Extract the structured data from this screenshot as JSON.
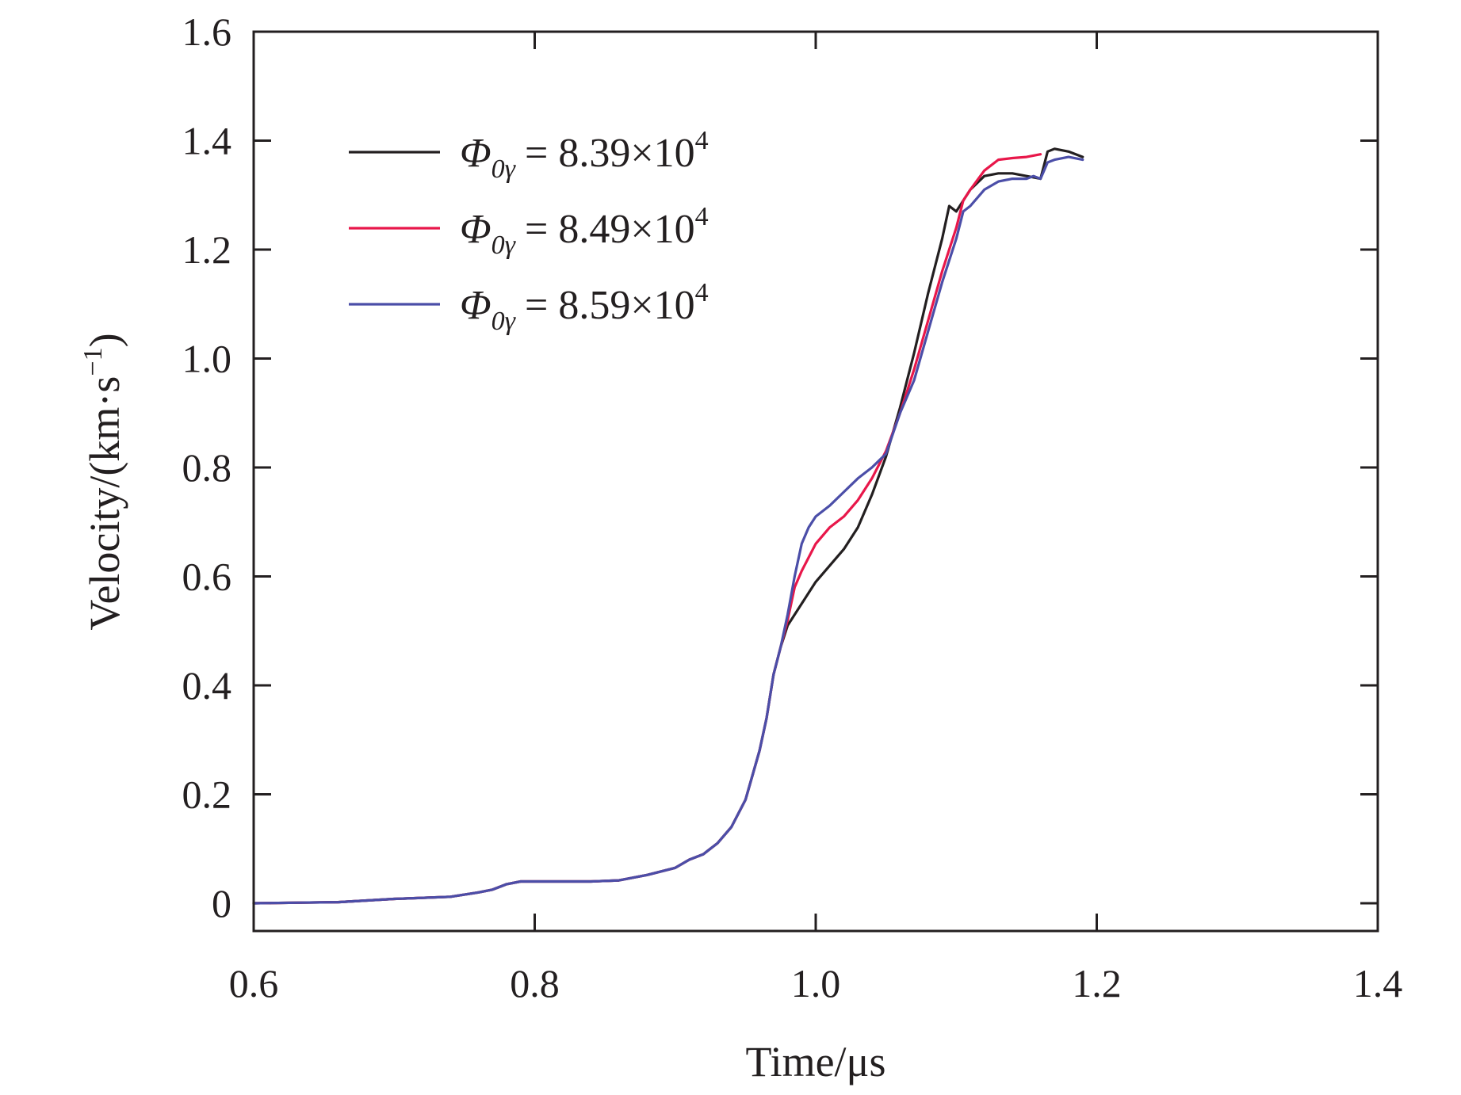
{
  "chart_data": {
    "type": "line",
    "title": "",
    "xlabel": "Time/μs",
    "ylabel_main": "Velocity/(km·s",
    "ylabel_exp": "−1",
    "ylabel_close": ")",
    "xlim": [
      0.6,
      1.4
    ],
    "ylim": [
      0,
      1.6
    ],
    "xticks": [
      0.6,
      0.8,
      1.0,
      1.2,
      1.4
    ],
    "xtick_labels": [
      "0.6",
      "0.8",
      "1.0",
      "1.2",
      "1.4"
    ],
    "yticks": [
      0,
      0.2,
      0.4,
      0.6,
      0.8,
      1.0,
      1.2,
      1.4,
      1.6
    ],
    "ytick_labels": [
      "0",
      "0.2",
      "0.4",
      "0.6",
      "0.8",
      "1.0",
      "1.2",
      "1.4",
      "1.6"
    ],
    "legend_position": "top-left",
    "grid": false,
    "series": [
      {
        "name": "Φ0γ = 8.39×10^4",
        "legend_symbol": "Φ",
        "legend_sub": "0γ",
        "legend_value": "= 8.39×10",
        "legend_exp": "4",
        "color": "#231f20",
        "x": [
          0.6,
          0.66,
          0.7,
          0.74,
          0.76,
          0.77,
          0.78,
          0.79,
          0.8,
          0.82,
          0.84,
          0.86,
          0.88,
          0.9,
          0.91,
          0.92,
          0.93,
          0.94,
          0.95,
          0.96,
          0.965,
          0.97,
          0.975,
          0.98,
          0.99,
          1.0,
          1.01,
          1.02,
          1.03,
          1.04,
          1.05,
          1.06,
          1.07,
          1.08,
          1.09,
          1.095,
          1.1,
          1.11,
          1.12,
          1.13,
          1.14,
          1.15,
          1.16,
          1.165,
          1.17,
          1.18,
          1.19
        ],
        "y": [
          0,
          0.002,
          0.008,
          0.012,
          0.02,
          0.025,
          0.035,
          0.04,
          0.04,
          0.04,
          0.04,
          0.042,
          0.052,
          0.065,
          0.08,
          0.09,
          0.11,
          0.14,
          0.19,
          0.28,
          0.34,
          0.42,
          0.47,
          0.51,
          0.55,
          0.59,
          0.62,
          0.65,
          0.69,
          0.75,
          0.82,
          0.91,
          1.01,
          1.12,
          1.22,
          1.28,
          1.27,
          1.31,
          1.335,
          1.34,
          1.34,
          1.335,
          1.33,
          1.38,
          1.385,
          1.38,
          1.37
        ]
      },
      {
        "name": "Φ0γ = 8.49×10^4",
        "legend_symbol": "Φ",
        "legend_sub": "0γ",
        "legend_value": "= 8.49×10",
        "legend_exp": "4",
        "color": "#e8174a",
        "x": [
          0.6,
          0.66,
          0.7,
          0.74,
          0.76,
          0.77,
          0.78,
          0.79,
          0.8,
          0.82,
          0.84,
          0.86,
          0.88,
          0.9,
          0.91,
          0.92,
          0.93,
          0.94,
          0.95,
          0.96,
          0.965,
          0.97,
          0.975,
          0.98,
          0.985,
          0.99,
          1.0,
          1.01,
          1.02,
          1.03,
          1.04,
          1.05,
          1.06,
          1.07,
          1.08,
          1.09,
          1.1,
          1.105,
          1.11,
          1.12,
          1.13,
          1.14,
          1.15,
          1.16
        ],
        "y": [
          0,
          0.002,
          0.008,
          0.012,
          0.02,
          0.025,
          0.035,
          0.04,
          0.04,
          0.04,
          0.04,
          0.042,
          0.052,
          0.065,
          0.08,
          0.09,
          0.11,
          0.14,
          0.19,
          0.28,
          0.34,
          0.42,
          0.47,
          0.52,
          0.58,
          0.61,
          0.66,
          0.69,
          0.71,
          0.74,
          0.78,
          0.83,
          0.9,
          0.98,
          1.07,
          1.16,
          1.24,
          1.29,
          1.31,
          1.345,
          1.365,
          1.368,
          1.37,
          1.375
        ]
      },
      {
        "name": "Φ0γ = 8.59×10^4",
        "legend_symbol": "Φ",
        "legend_sub": "0γ",
        "legend_value": "= 8.59×10",
        "legend_exp": "4",
        "color": "#4b4ea8",
        "x": [
          0.6,
          0.66,
          0.7,
          0.74,
          0.76,
          0.77,
          0.78,
          0.79,
          0.8,
          0.82,
          0.84,
          0.86,
          0.88,
          0.9,
          0.91,
          0.92,
          0.93,
          0.94,
          0.95,
          0.96,
          0.965,
          0.97,
          0.975,
          0.98,
          0.985,
          0.99,
          0.995,
          1.0,
          1.01,
          1.02,
          1.03,
          1.04,
          1.05,
          1.06,
          1.07,
          1.08,
          1.09,
          1.1,
          1.105,
          1.11,
          1.12,
          1.13,
          1.14,
          1.15,
          1.155,
          1.16,
          1.165,
          1.17,
          1.18,
          1.19
        ],
        "y": [
          0,
          0.002,
          0.008,
          0.012,
          0.02,
          0.025,
          0.035,
          0.04,
          0.04,
          0.04,
          0.04,
          0.042,
          0.052,
          0.065,
          0.08,
          0.09,
          0.11,
          0.14,
          0.19,
          0.28,
          0.34,
          0.42,
          0.47,
          0.53,
          0.6,
          0.66,
          0.69,
          0.71,
          0.73,
          0.755,
          0.78,
          0.8,
          0.825,
          0.9,
          0.96,
          1.05,
          1.14,
          1.22,
          1.27,
          1.28,
          1.31,
          1.325,
          1.33,
          1.33,
          1.335,
          1.33,
          1.36,
          1.365,
          1.37,
          1.365
        ]
      }
    ]
  }
}
